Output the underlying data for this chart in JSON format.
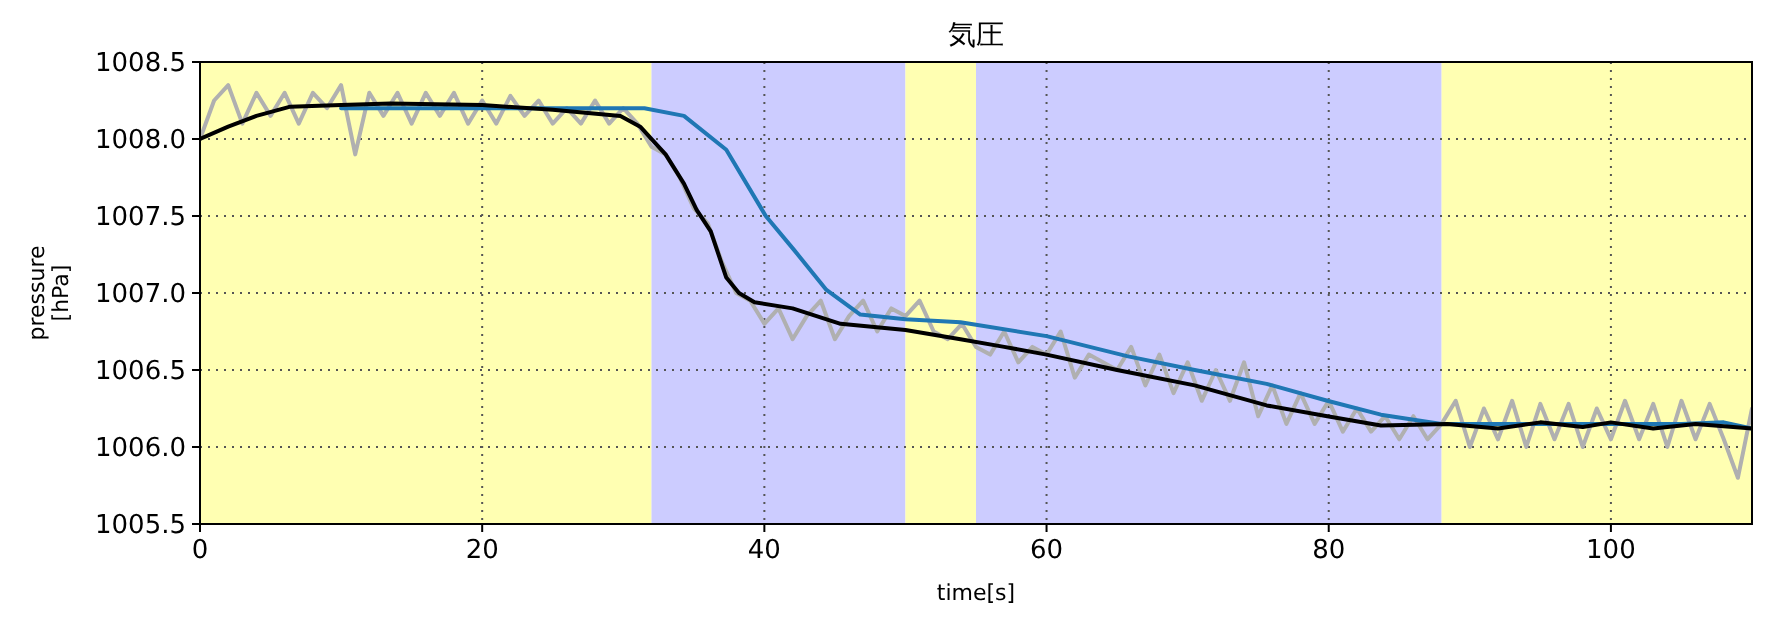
{
  "chart_data": {
    "type": "line",
    "title": "気圧",
    "xlabel": "time[s]",
    "ylabel": "pressure\n[hPa]",
    "xlim": [
      0,
      110
    ],
    "xticks": [
      0,
      20,
      40,
      60,
      80,
      100
    ],
    "ylim": [
      1005.5,
      1008.5
    ],
    "yticks": [
      {
        "value": 1005.5,
        "label": "1005.5"
      },
      {
        "value": 1006,
        "label": "1006.0"
      },
      {
        "value": 1006.5,
        "label": "1006.5"
      },
      {
        "value": 1007,
        "label": "1007.0"
      },
      {
        "value": 1007.5,
        "label": "1007.5"
      },
      {
        "value": 1008,
        "label": "1008.0"
      },
      {
        "value": 1008.5,
        "label": "1008.5"
      }
    ],
    "grid": true,
    "line_style": "solid",
    "bands": [
      {
        "axis": "x",
        "from": 0,
        "to": 32,
        "color": "#ffffb2"
      },
      {
        "axis": "x",
        "from": 32,
        "to": 50,
        "color": "#ccccff"
      },
      {
        "axis": "x",
        "from": 50,
        "to": 55,
        "color": "#ffffb2"
      },
      {
        "axis": "x",
        "from": 55,
        "to": 88,
        "color": "#ccccff"
      },
      {
        "axis": "x",
        "from": 88,
        "to": 110,
        "color": "#ffffb2"
      }
    ],
    "series": [
      {
        "color": "#b0b0b0",
        "x": [
          0,
          1,
          2,
          3,
          4,
          5,
          6,
          7,
          8,
          9,
          10,
          11,
          12,
          13,
          14,
          15,
          16,
          17,
          18,
          19,
          20,
          21,
          22,
          23,
          24,
          25,
          26,
          27,
          28,
          29,
          30,
          31,
          32,
          33,
          34,
          35,
          36,
          37,
          38,
          39,
          40,
          41,
          42,
          43,
          44,
          45,
          46,
          47,
          48,
          49,
          50,
          51,
          52,
          53,
          54,
          55,
          56,
          57,
          58,
          59,
          60,
          61,
          62,
          63,
          64,
          65,
          66,
          67,
          68,
          69,
          70,
          71,
          72,
          73,
          74,
          75,
          76,
          77,
          78,
          79,
          80,
          81,
          82,
          83,
          84,
          85,
          86,
          87,
          88,
          89,
          90,
          91,
          92,
          93,
          94,
          95,
          96,
          97,
          98,
          99,
          100,
          101,
          102,
          103,
          104,
          105,
          106,
          107,
          108,
          109,
          110
        ],
        "values": [
          1008.0,
          1008.25,
          1008.35,
          1008.1,
          1008.3,
          1008.15,
          1008.3,
          1008.1,
          1008.3,
          1008.2,
          1008.35,
          1007.9,
          1008.3,
          1008.15,
          1008.3,
          1008.1,
          1008.3,
          1008.15,
          1008.3,
          1008.1,
          1008.25,
          1008.1,
          1008.28,
          1008.15,
          1008.25,
          1008.1,
          1008.2,
          1008.1,
          1008.25,
          1008.1,
          1008.2,
          1008.1,
          1007.95,
          1007.9,
          1007.75,
          1007.55,
          1007.45,
          1007.2,
          1007.0,
          1006.95,
          1006.8,
          1006.9,
          1006.7,
          1006.85,
          1006.95,
          1006.7,
          1006.85,
          1006.95,
          1006.75,
          1006.9,
          1006.85,
          1006.95,
          1006.75,
          1006.7,
          1006.8,
          1006.65,
          1006.6,
          1006.75,
          1006.55,
          1006.65,
          1006.6,
          1006.75,
          1006.45,
          1006.6,
          1006.55,
          1006.5,
          1006.65,
          1006.4,
          1006.6,
          1006.35,
          1006.55,
          1006.3,
          1006.5,
          1006.3,
          1006.55,
          1006.2,
          1006.4,
          1006.15,
          1006.35,
          1006.15,
          1006.3,
          1006.1,
          1006.25,
          1006.1,
          1006.2,
          1006.05,
          1006.2,
          1006.05,
          1006.15,
          1006.3,
          1006.0,
          1006.25,
          1006.05,
          1006.3,
          1006.0,
          1006.28,
          1006.05,
          1006.28,
          1006.0,
          1006.25,
          1006.05,
          1006.3,
          1006.05,
          1006.28,
          1006.0,
          1006.3,
          1006.05,
          1006.28,
          1006.05,
          1005.8,
          1006.25
        ]
      },
      {
        "color": "#1f77b4",
        "x": [
          10,
          20,
          31.5,
          34.3,
          37.3,
          40.1,
          42.1,
          44.4,
          46.8,
          50,
          53.9,
          60,
          65.7,
          70.5,
          75.6,
          79.9,
          83.7,
          88,
          95,
          100,
          105,
          108,
          110
        ],
        "values": [
          1008.2,
          1008.2,
          1008.2,
          1008.15,
          1007.93,
          1007.5,
          1007.28,
          1007.02,
          1006.86,
          1006.83,
          1006.81,
          1006.72,
          1006.59,
          1006.5,
          1006.41,
          1006.3,
          1006.21,
          1006.15,
          1006.15,
          1006.15,
          1006.15,
          1006.16,
          1006.12
        ]
      },
      {
        "color": "#000000",
        "x": [
          0,
          2,
          4,
          6.4,
          10,
          13.5,
          20,
          25,
          29.8,
          31.2,
          32.3,
          33,
          34.3,
          35.2,
          36.2,
          37.3,
          38.2,
          39.3,
          42,
          45.4,
          50,
          53.9,
          57,
          60,
          65,
          70.5,
          75.6,
          79.9,
          83.7,
          88.4,
          92,
          95,
          98,
          100,
          103,
          106,
          110
        ],
        "values": [
          1008.0,
          1008.08,
          1008.15,
          1008.21,
          1008.22,
          1008.23,
          1008.22,
          1008.19,
          1008.15,
          1008.08,
          1007.97,
          1007.9,
          1007.71,
          1007.54,
          1007.4,
          1007.1,
          1007.0,
          1006.94,
          1006.9,
          1006.8,
          1006.76,
          1006.7,
          1006.65,
          1006.6,
          1006.5,
          1006.4,
          1006.27,
          1006.2,
          1006.14,
          1006.15,
          1006.12,
          1006.16,
          1006.13,
          1006.16,
          1006.12,
          1006.15,
          1006.12
        ]
      }
    ]
  }
}
